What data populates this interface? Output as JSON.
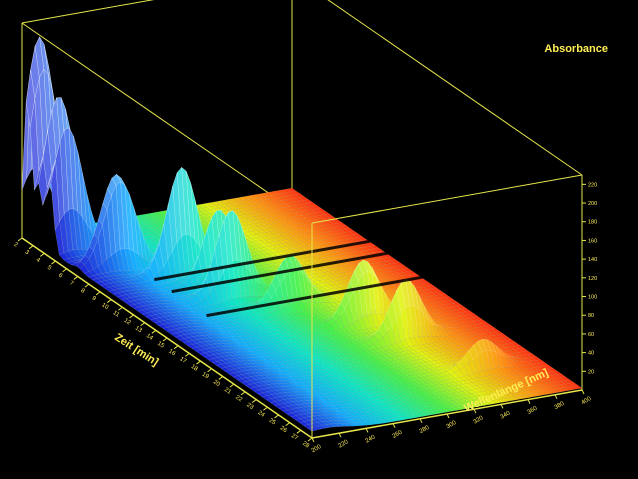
{
  "chart_data": {
    "type": "surface-3d",
    "title": "",
    "zlabel": "Absorbance",
    "xlabel": "Zeit [min]",
    "ylabel": "Wellenlänge [nm]",
    "time_ticks": [
      "2",
      "3",
      "4",
      "5",
      "6",
      "7",
      "8",
      "9",
      "10",
      "11",
      "12",
      "13",
      "14",
      "15",
      "16",
      "17",
      "18",
      "19",
      "20",
      "21",
      "22",
      "23",
      "24",
      "25",
      "26",
      "27",
      "28"
    ],
    "wavelength_ticks": [
      "200",
      "220",
      "240",
      "260",
      "280",
      "300",
      "320",
      "340",
      "360",
      "380",
      "400"
    ],
    "absorbance_ticks": [
      "20",
      "40",
      "60",
      "80",
      "100",
      "120",
      "140",
      "160",
      "180",
      "200",
      "220"
    ],
    "time_range": [
      2,
      28
    ],
    "wavelength_range": [
      200,
      400
    ],
    "absorbance_range": [
      0,
      230
    ],
    "colormap": [
      "#0a1ad6",
      "#00a6ff",
      "#00e6c0",
      "#3cf03c",
      "#e0f000",
      "#ff8c00",
      "#ff1e00"
    ],
    "axis_color": "#e6e64a",
    "peaks": [
      {
        "time": 2.5,
        "wavelength": 210,
        "absorbance": 225
      },
      {
        "time": 3.5,
        "wavelength": 215,
        "absorbance": 150
      },
      {
        "time": 4.5,
        "wavelength": 212,
        "absorbance": 135
      },
      {
        "time": 7.0,
        "wavelength": 230,
        "absorbance": 110
      },
      {
        "time": 9.0,
        "wavelength": 260,
        "absorbance": 118
      },
      {
        "time": 10.5,
        "wavelength": 275,
        "absorbance": 80
      },
      {
        "time": 12.0,
        "wavelength": 272,
        "absorbance": 92
      },
      {
        "time": 14.0,
        "wavelength": 300,
        "absorbance": 55
      },
      {
        "time": 17.0,
        "wavelength": 330,
        "absorbance": 70
      },
      {
        "time": 19.5,
        "wavelength": 340,
        "absorbance": 62
      },
      {
        "time": 24.0,
        "wavelength": 360,
        "absorbance": 30
      }
    ]
  }
}
